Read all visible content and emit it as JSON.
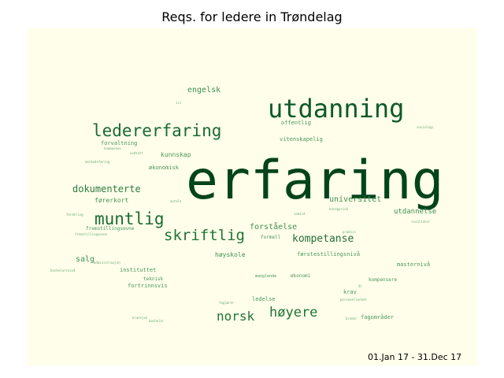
{
  "title": "Reqs. for ledere in Trøndelag",
  "date_range": "01.Jan 17 - 31.Dec 17",
  "colors": {
    "background": "#fefeea",
    "dark": "#00441b",
    "mid": "#1a6b32",
    "light": "#3f8f52",
    "faint": "#6fae78"
  },
  "words": [
    {
      "text": "erfaring"
    },
    {
      "text": "utdanning"
    },
    {
      "text": "ledererfaring"
    },
    {
      "text": "muntlig"
    },
    {
      "text": "skriftlig"
    },
    {
      "text": "høyere"
    },
    {
      "text": "norsk"
    },
    {
      "text": "kompetanse"
    },
    {
      "text": "dokumenterte"
    },
    {
      "text": "engelsk"
    },
    {
      "text": "universitet"
    },
    {
      "text": "forståelse"
    },
    {
      "text": "utdannelse"
    },
    {
      "text": "salg"
    },
    {
      "text": "høyskole"
    },
    {
      "text": "kunnskap"
    },
    {
      "text": "offentlig"
    },
    {
      "text": "vitenskapelig"
    },
    {
      "text": "forvaltning"
    },
    {
      "text": "økonomisk"
    },
    {
      "text": "førerkort"
    },
    {
      "text": "fremstillingsevne"
    },
    {
      "text": "formell"
    },
    {
      "text": "førstestillingsnivå"
    },
    {
      "text": "instituttet"
    },
    {
      "text": "teknisk"
    },
    {
      "text": "fortrinnsvis"
    },
    {
      "text": "masternivå"
    },
    {
      "text": "økonomi"
    },
    {
      "text": "manglende"
    },
    {
      "text": "kompensere"
    },
    {
      "text": "krav"
    },
    {
      "text": "ledelse"
    },
    {
      "text": "fagområder"
    },
    {
      "text": "administrasjon"
    },
    {
      "text": "bachelorsnivå"
    },
    {
      "text": "kommunene"
    },
    {
      "text": "markedsføring"
    },
    {
      "text": "vedtatt"
    },
    {
      "text": "fremstillingsevne"
    },
    {
      "text": "fordeling"
    },
    {
      "text": "avtale"
    },
    {
      "text": "kategorisk"
    },
    {
      "text": "resultater"
    },
    {
      "text": "praksis"
    },
    {
      "text": "personellenhet"
    },
    {
      "text": "faglærer"
    },
    {
      "text": "bransjen"
    },
    {
      "text": "bachelor"
    },
    {
      "text": "bruker"
    },
    {
      "text": "sosiologi"
    },
    {
      "text": "ål"
    },
    {
      "text": "iii"
    },
    {
      "text": "samtid"
    }
  ]
}
